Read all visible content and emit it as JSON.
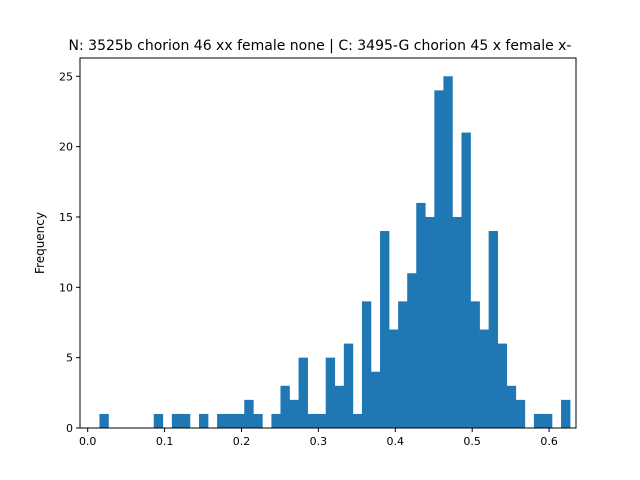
{
  "chart_data": {
    "type": "bar",
    "title": "N: 3525b chorion 46 xx female none | C: 3495-G chorion 45 x female x-",
    "xlabel": "",
    "ylabel": "Frequency",
    "xlim": [
      -0.01,
      0.635
    ],
    "ylim": [
      0,
      26.3
    ],
    "x_ticks": [
      0.0,
      0.1,
      0.2,
      0.3,
      0.4,
      0.5,
      0.6
    ],
    "x_tick_labels": [
      "0.0",
      "0.1",
      "0.2",
      "0.3",
      "0.4",
      "0.5",
      "0.6"
    ],
    "y_ticks": [
      0,
      5,
      10,
      15,
      20,
      25
    ],
    "y_tick_labels": [
      "0",
      "5",
      "10",
      "15",
      "20",
      "25"
    ],
    "bin_start": 0.0153,
    "bin_width": 0.01177,
    "values": [
      1,
      0,
      0,
      0,
      0,
      0,
      1,
      0,
      1,
      1,
      0,
      1,
      0,
      1,
      1,
      1,
      2,
      1,
      0,
      1,
      3,
      2,
      5,
      1,
      1,
      5,
      3,
      6,
      1,
      9,
      4,
      14,
      7,
      9,
      11,
      16,
      15,
      24,
      25,
      15,
      21,
      9,
      7,
      14,
      6,
      3,
      2,
      0,
      1,
      1,
      0,
      2
    ],
    "grid": false,
    "legend": "none",
    "bar_color": "#1f77b4"
  }
}
